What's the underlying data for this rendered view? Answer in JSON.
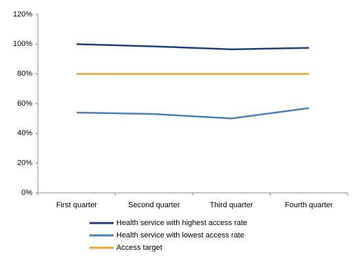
{
  "chart_data": {
    "type": "line",
    "categories": [
      "First quarter",
      "Second quarter",
      "Third quarter",
      "Fourth quarter"
    ],
    "series": [
      {
        "name": "Health service with highest access rate",
        "color": "#1f3f7a",
        "values": [
          100,
          98.5,
          96.5,
          97.5
        ]
      },
      {
        "name": "Health service with lowest access rate",
        "color": "#4a7ebb",
        "values": [
          54,
          53,
          50,
          57
        ]
      },
      {
        "name": "Access target",
        "color": "#f0a030",
        "values": [
          80,
          80,
          80,
          80
        ]
      }
    ],
    "ylim": [
      0,
      120
    ],
    "yticks": [
      {
        "value": 0,
        "label": "0%"
      },
      {
        "value": 20,
        "label": "20%"
      },
      {
        "value": 40,
        "label": "40%"
      },
      {
        "value": 60,
        "label": "60%"
      },
      {
        "value": 80,
        "label": "80%"
      },
      {
        "value": 100,
        "label": "100%"
      },
      {
        "value": 120,
        "label": "120%"
      }
    ],
    "grid": false,
    "legend": "bottom"
  }
}
